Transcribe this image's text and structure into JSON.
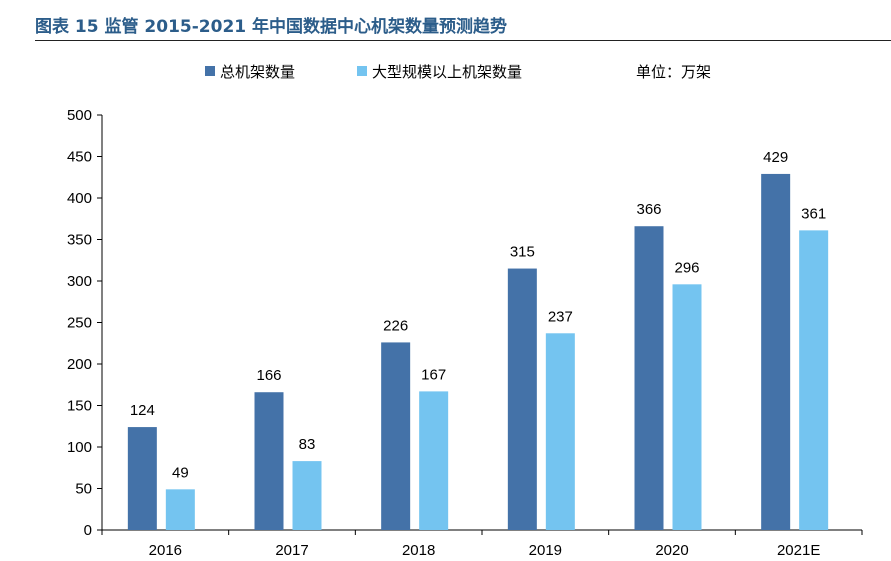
{
  "figure": {
    "title": "图表 15 监管 2015-2021 年中国数据中心机架数量预测趋势"
  },
  "unit_note": "单位：万架",
  "colors": {
    "series_total": "#4472a8",
    "series_large": "#74c4f0",
    "title": "#2c5d8a",
    "axis": "#000000"
  },
  "chart_data": {
    "type": "bar",
    "title": "",
    "xlabel": "",
    "ylabel": "",
    "categories": [
      "2016",
      "2017",
      "2018",
      "2019",
      "2020",
      "2021E"
    ],
    "series": [
      {
        "name": "总机架数量",
        "values": [
          124,
          166,
          226,
          315,
          366,
          429
        ]
      },
      {
        "name": "大型规模以上机架数量",
        "values": [
          49,
          83,
          167,
          237,
          296,
          361
        ]
      }
    ],
    "ylim": [
      0,
      500
    ],
    "yticks": [
      0,
      50,
      100,
      150,
      200,
      250,
      300,
      350,
      400,
      450,
      500
    ],
    "grid": false,
    "legend_position": "top"
  }
}
